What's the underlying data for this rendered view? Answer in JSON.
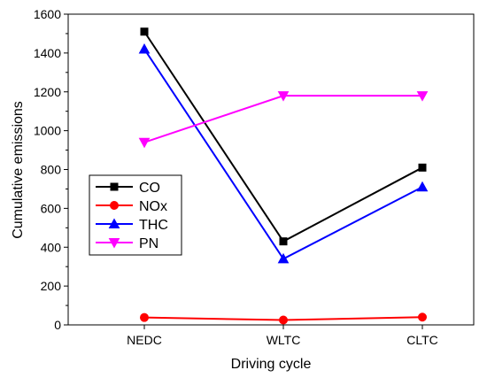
{
  "chart_data": {
    "type": "line",
    "categories": [
      "NEDC",
      "WLTC",
      "CLTC"
    ],
    "xlabel": "Driving cycle",
    "ylabel": "Cumulative emissions",
    "ylim": [
      0,
      1600
    ],
    "yticks": [
      0,
      200,
      400,
      600,
      800,
      1000,
      1200,
      1400,
      1600
    ],
    "grid": false,
    "legend_position": "left",
    "series": [
      {
        "name": "CO",
        "values": [
          1510,
          430,
          810
        ],
        "color": "#000000",
        "marker": "square"
      },
      {
        "name": "NOx",
        "values": [
          38,
          25,
          40
        ],
        "color": "#ff0000",
        "marker": "circle"
      },
      {
        "name": "THC",
        "values": [
          1420,
          340,
          710
        ],
        "color": "#0000ff",
        "marker": "triangle-up"
      },
      {
        "name": "PN",
        "values": [
          940,
          1180,
          1180
        ],
        "color": "#ff00ff",
        "marker": "triangle-down"
      }
    ]
  }
}
